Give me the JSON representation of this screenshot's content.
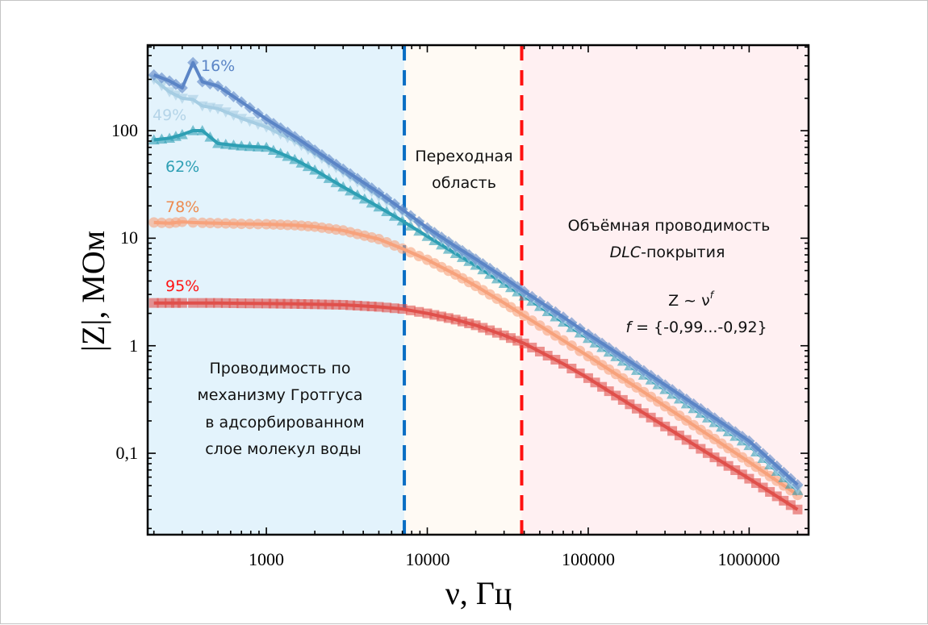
{
  "chart_data": {
    "type": "line",
    "title": "",
    "xlabel": "ν, Гц",
    "ylabel": "|Z|, МОм",
    "xscale": "log",
    "yscale": "log",
    "xlim": [
      183,
      2340000
    ],
    "ylim": [
      0.0175,
      624
    ],
    "xticks": [
      1000,
      10000,
      100000,
      1000000
    ],
    "xtick_labels": [
      "1000",
      "10000",
      "100000",
      "1000000"
    ],
    "yticks": [
      0.1,
      1,
      10,
      100
    ],
    "ytick_labels": [
      "0,1",
      "1",
      "10",
      "100"
    ],
    "grid": false,
    "legend": "none",
    "regions": [
      {
        "name": "grotthuss",
        "from": 183,
        "to": 7200,
        "color": "#e3f3fc",
        "label": [
          "Проводимость по",
          "механизму Гротгуса",
          "в адсорбированном",
          "слое молекул воды"
        ]
      },
      {
        "name": "transition",
        "from": 7200,
        "to": 38600,
        "color": "#fffaf4",
        "label": [
          "Переходная",
          "область"
        ]
      },
      {
        "name": "bulk",
        "from": 38600,
        "to": 2340000,
        "color": "#fff0f2",
        "label": [
          "Объёмная проводимость",
          "DLC-покрытия"
        ]
      }
    ],
    "vlines": [
      {
        "x": 7200,
        "color": "#0a6ec4",
        "style": "dashed"
      },
      {
        "x": 38600,
        "color": "#ff1010",
        "style": "dashed"
      }
    ],
    "annotations": {
      "formula_line1_base": "Z ~ ν",
      "formula_line1_sup": "f",
      "formula_line2_var": "f",
      "formula_line2_rest": " = {-0,99...-0,92}",
      "dlc_italic": "DLC",
      "dlc_rest": "-покрытия",
      "bulk_line1": "Объёмная проводимость"
    },
    "x": [
      200,
      250,
      300,
      350,
      400,
      500,
      700,
      1000,
      1500,
      2000,
      3000,
      5000,
      7000,
      10000,
      15000,
      20000,
      30000,
      40000,
      70000,
      100000,
      200000,
      500000,
      1000000,
      2000000
    ],
    "series": [
      {
        "name": "16%",
        "color": "#5b85c6",
        "marker": "diamond",
        "values": [
          330,
          290,
          250,
          430,
          285,
          260,
          185,
          128,
          88,
          66,
          44,
          26.5,
          18.5,
          12.5,
          8.4,
          6.4,
          4.3,
          3.2,
          1.85,
          1.28,
          0.65,
          0.26,
          0.13,
          0.051
        ]
      },
      {
        "name": "49%",
        "color": "#a6cde3",
        "marker": "triangle-down",
        "values": [
          300,
          230,
          200,
          195,
          170,
          160,
          130,
          108,
          80,
          61,
          41,
          24.5,
          17.5,
          11.8,
          7.9,
          6.0,
          4.0,
          3.0,
          1.72,
          1.2,
          0.6,
          0.24,
          0.12,
          0.046
        ]
      },
      {
        "name": "62%",
        "color": "#2e9fb4",
        "marker": "triangle-up",
        "values": [
          82,
          85,
          92,
          100,
          100,
          76,
          72,
          70,
          54,
          43,
          30,
          19.5,
          14.5,
          10.4,
          7.2,
          5.6,
          3.8,
          2.9,
          1.66,
          1.17,
          0.59,
          0.235,
          0.118,
          0.045
        ]
      },
      {
        "name": "78%",
        "color": "#f7a27c",
        "marker": "circle",
        "values": [
          14,
          13.8,
          14.2,
          14,
          13.9,
          13.8,
          13.6,
          13.5,
          13.2,
          12.8,
          11.8,
          9.8,
          8.0,
          6.3,
          4.6,
          3.6,
          2.5,
          1.9,
          1.12,
          0.8,
          0.41,
          0.165,
          0.083,
          0.041
        ]
      },
      {
        "name": "95%",
        "color": "#e0504b",
        "marker": "square",
        "values": [
          2.5,
          2.5,
          2.5,
          2.5,
          2.5,
          2.5,
          2.48,
          2.47,
          2.45,
          2.43,
          2.4,
          2.3,
          2.2,
          2.0,
          1.75,
          1.55,
          1.25,
          1.05,
          0.68,
          0.5,
          0.26,
          0.11,
          0.058,
          0.03
        ]
      }
    ],
    "series_labels": [
      {
        "text": "16%",
        "color": "#5b85c6"
      },
      {
        "text": "49%",
        "color": "#b4d4e8"
      },
      {
        "text": "62%",
        "color": "#2e9fb4"
      },
      {
        "text": "78%",
        "color": "#ed8a4e"
      },
      {
        "text": "95%",
        "color": "#ff1414"
      }
    ]
  }
}
